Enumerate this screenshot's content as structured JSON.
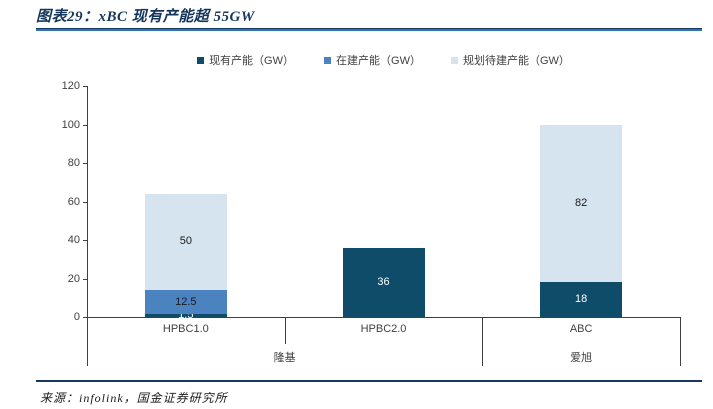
{
  "page": {
    "title": "图表29：xBC 现有产能超 55GW",
    "source": "来源：infolink，国金证券研究所"
  },
  "chart_data": {
    "type": "bar",
    "stacked": true,
    "title": "图表29：xBC 现有产能超 55GW",
    "categories": [
      "HPBC1.0",
      "HPBC2.0",
      "ABC"
    ],
    "groups": [
      {
        "label": "隆基",
        "span": [
          "HPBC1.0",
          "HPBC2.0"
        ]
      },
      {
        "label": "爱旭",
        "span": [
          "ABC"
        ]
      }
    ],
    "series": [
      {
        "name": "现有产能（GW）",
        "color": "#0E4C69",
        "label_color": "#FFFFFF",
        "values": [
          1.5,
          36,
          18
        ]
      },
      {
        "name": "在建产能（GW）",
        "color": "#4A83BF",
        "label_color": "#1A1A1A",
        "values": [
          12.5,
          0,
          0
        ]
      },
      {
        "name": "规划待建产能（GW）",
        "color": "#D6E4F0",
        "label_color": "#1A1A1A",
        "values": [
          50,
          0,
          82
        ]
      }
    ],
    "ylim": [
      0,
      120
    ],
    "ytick_interval": 20,
    "grid": false,
    "legend_position": "top"
  }
}
